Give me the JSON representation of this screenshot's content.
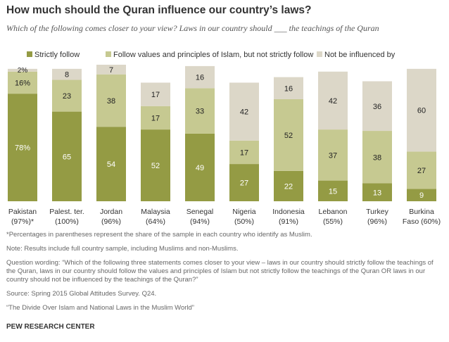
{
  "title": "How much should the Quran influence our country’s laws?",
  "subtitle": "Which of the following comes closer to your view? Laws in our country should ___ the teachings of the Quran",
  "colors": {
    "strict": "#949b44",
    "values": "#c6c991",
    "none": "#dcd7c8"
  },
  "chart_data": {
    "type": "bar",
    "stacked": true,
    "categories": [
      "Pakistan (97%)*",
      "Palest. ter. (100%)",
      "Jordan (96%)",
      "Malaysia (64%)",
      "Senegal (94%)",
      "Nigeria (50%)",
      "Indonesia (91%)",
      "Lebanon (55%)",
      "Turkey (96%)",
      "Burkina Faso (60%)"
    ],
    "category_lines": [
      [
        "Pakistan",
        "(97%)*"
      ],
      [
        "Palest. ter.",
        "(100%)"
      ],
      [
        "Jordan",
        "(96%)"
      ],
      [
        "Malaysia",
        "(64%)"
      ],
      [
        "Senegal",
        "(94%)"
      ],
      [
        "Nigeria",
        "(50%)"
      ],
      [
        "Indonesia",
        "(91%)"
      ],
      [
        "Lebanon",
        "(55%)"
      ],
      [
        "Turkey",
        "(96%)"
      ],
      [
        "Burkina",
        "Faso (60%)"
      ]
    ],
    "series": [
      {
        "name": "Strictly follow",
        "values": [
          78,
          65,
          54,
          52,
          49,
          27,
          22,
          15,
          13,
          9
        ],
        "labels": [
          "78%",
          "65",
          "54",
          "52",
          "49",
          "27",
          "22",
          "15",
          "13",
          "9"
        ]
      },
      {
        "name": "Follow values and principles of Islam, but not strictly follow",
        "values": [
          16,
          23,
          38,
          17,
          33,
          17,
          52,
          37,
          38,
          27
        ],
        "labels": [
          "16%",
          "23",
          "38",
          "17",
          "33",
          "17",
          "52",
          "37",
          "38",
          "27"
        ]
      },
      {
        "name": "Not be influenced by",
        "values": [
          2,
          8,
          7,
          17,
          16,
          42,
          16,
          42,
          36,
          60
        ],
        "labels": [
          "2%",
          "8",
          "7",
          "17",
          "16",
          "42",
          "16",
          "42",
          "36",
          "60"
        ]
      }
    ],
    "legend": "top",
    "grid": false
  },
  "notes": [
    "*Percentages in parentheses represent the share of the sample in each country who identify as Muslim.",
    "Note: Results include full country sample, including Muslims and non-Muslims.",
    "Question wording: “Which of the following three statements comes closer to your view – laws in our country should strictly follow the teachings of the Quran, laws in our country should follow the values and principles of Islam but not strictly follow the teachings of the Quran OR laws in our country should not be influenced by the teachings of the Quran?”",
    "Source: Spring 2015 Global Attitudes Survey. Q24.",
    "“The Divide Over Islam and National Laws in the Muslim World”"
  ],
  "footer": "PEW RESEARCH CENTER"
}
